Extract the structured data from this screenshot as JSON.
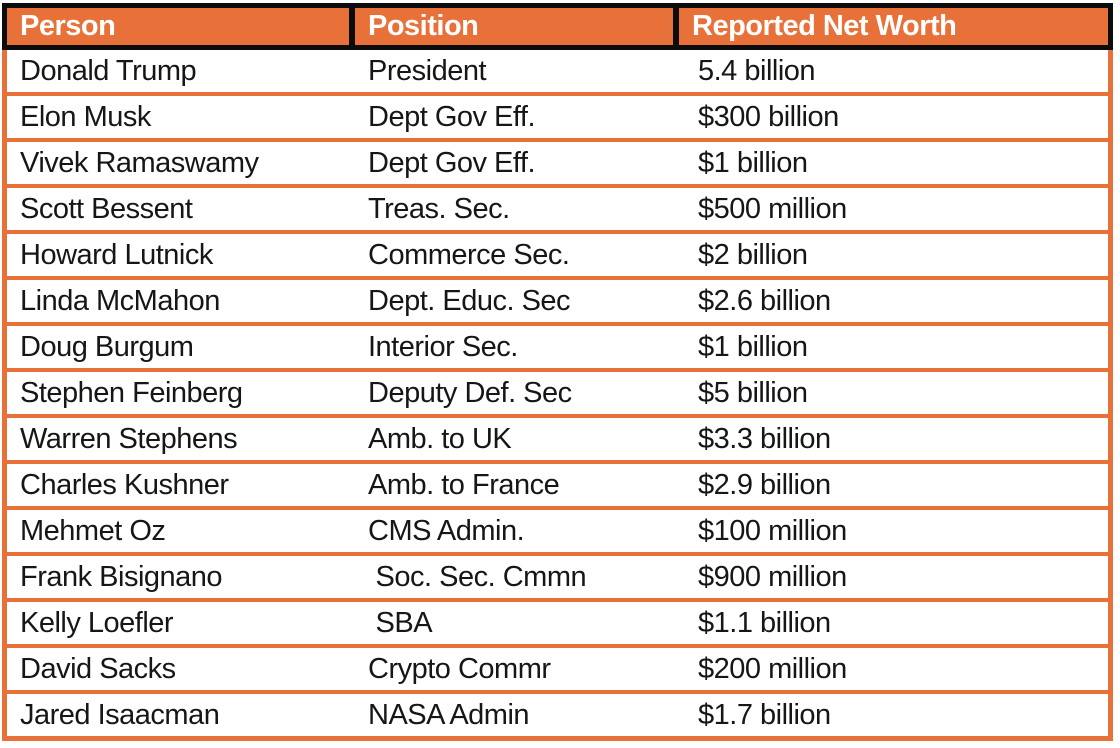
{
  "chart_data": {
    "type": "table",
    "columns": [
      "Person",
      "Position",
      "Reported Net Worth"
    ],
    "rows": [
      {
        "person": "Donald Trump",
        "position": "President",
        "net_worth": "5.4 billion"
      },
      {
        "person": "Elon Musk",
        "position": "Dept Gov Eff.",
        "net_worth": "$300 billion"
      },
      {
        "person": "Vivek Ramaswamy",
        "position": "Dept Gov Eff.",
        "net_worth": "$1 billion"
      },
      {
        "person": "Scott Bessent",
        "position": "Treas. Sec.",
        "net_worth": "$500 million"
      },
      {
        "person": "Howard Lutnick",
        "position": "Commerce Sec.",
        "net_worth": "$2 billion"
      },
      {
        "person": "Linda McMahon",
        "position": "Dept. Educ. Sec",
        "net_worth": "$2.6 billion"
      },
      {
        "person": "Doug Burgum",
        "position": "Interior Sec.",
        "net_worth": "$1 billion"
      },
      {
        "person": "Stephen Feinberg",
        "position": "Deputy Def. Sec",
        "net_worth": "$5 billion"
      },
      {
        "person": "Warren Stephens",
        "position": "Amb. to UK",
        "net_worth": "$3.3 billion"
      },
      {
        "person": "Charles Kushner",
        "position": "Amb. to France",
        "net_worth": "$2.9 billion"
      },
      {
        "person": "Mehmet Oz",
        "position": "CMS Admin.",
        "net_worth": "$100 million"
      },
      {
        "person": "Frank Bisignano",
        "position": " Soc. Sec. Cmmn",
        "net_worth": "$900 million"
      },
      {
        "person": "Kelly Loefler",
        "position": " SBA",
        "net_worth": "$1.1 billion"
      },
      {
        "person": "David Sacks",
        "position": "Crypto Commr",
        "net_worth": "$200 million"
      },
      {
        "person": "Jared Isaacman",
        "position": "NASA Admin",
        "net_worth": "$1.7 billion"
      }
    ]
  },
  "colors": {
    "accent_orange": "#E8713A",
    "header_border_black": "#0C0C0C",
    "header_text": "#FFFFFF",
    "body_text": "#161616",
    "row_background": "#FFFFFF"
  }
}
